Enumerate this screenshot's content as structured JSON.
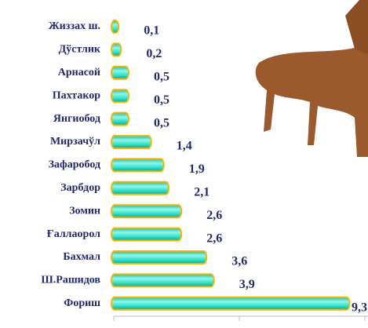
{
  "chart_data": {
    "type": "bar",
    "orientation": "horizontal",
    "categories": [
      "Жиззах ш.",
      "Дўстлик",
      "Арнасой",
      "Пахтакор",
      "Янгиобод",
      "Мирзачўл",
      "Зафаробод",
      "Зарбдор",
      "Зомин",
      "Ғаллаорол",
      "Бахмал",
      "Ш.Рашидов",
      "Фориш"
    ],
    "values": [
      0.1,
      0.2,
      0.5,
      0.5,
      0.5,
      1.4,
      1.9,
      2.1,
      2.6,
      2.6,
      3.6,
      3.9,
      9.3
    ],
    "value_labels": [
      "0,1",
      "0,2",
      "0,5",
      "0,5",
      "0,5",
      "1,4",
      "1,9",
      "2,1",
      "2,6",
      "2,6",
      "3,6",
      "3,9",
      "9,3"
    ],
    "color": "#33e6cf",
    "xlim": [
      0,
      10
    ],
    "xticks": [
      0,
      5,
      10
    ],
    "grid": false
  }
}
